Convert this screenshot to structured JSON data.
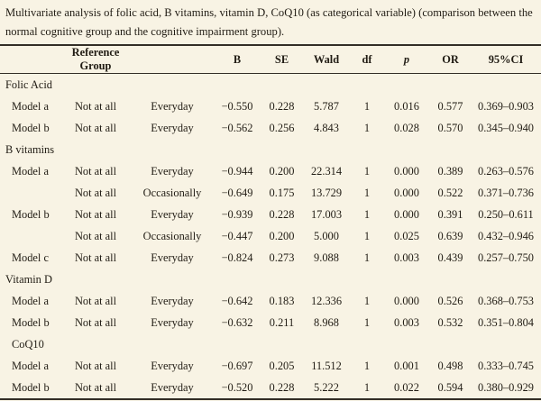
{
  "caption": "Multivariate analysis of folic acid, B vitamins, vitamin D, CoQ10 (as categorical variable) (comparison between the normal cognitive group and the cognitive impairment group).",
  "colors": {
    "background": "#f8f3e4",
    "text": "#211c14",
    "rule": "#332e26"
  },
  "table": {
    "header": {
      "reference_group": "Reference Group",
      "b": "B",
      "se": "SE",
      "wald": "Wald",
      "df": "df",
      "p": "p",
      "or": "OR",
      "ci": "95%CI"
    },
    "sections": [
      {
        "name": "Folic Acid",
        "indent": false,
        "rows": [
          {
            "model": "Model a",
            "ref": "Not at all",
            "group": "Everyday",
            "b": "−0.550",
            "se": "0.228",
            "wald": "5.787",
            "df": "1",
            "p": "0.016",
            "or": "0.577",
            "ci": "0.369–0.903"
          },
          {
            "model": "Model b",
            "ref": "Not at all",
            "group": "Everyday",
            "b": "−0.562",
            "se": "0.256",
            "wald": "4.843",
            "df": "1",
            "p": "0.028",
            "or": "0.570",
            "ci": "0.345–0.940"
          }
        ]
      },
      {
        "name": "B vitamins",
        "indent": false,
        "rows": [
          {
            "model": "Model a",
            "ref": "Not at all",
            "group": "Everyday",
            "b": "−0.944",
            "se": "0.200",
            "wald": "22.314",
            "df": "1",
            "p": "0.000",
            "or": "0.389",
            "ci": "0.263–0.576"
          },
          {
            "model": "",
            "ref": "Not at all",
            "group": "Occasionally",
            "b": "−0.649",
            "se": "0.175",
            "wald": "13.729",
            "df": "1",
            "p": "0.000",
            "or": "0.522",
            "ci": "0.371–0.736"
          },
          {
            "model": "Model b",
            "ref": "Not at all",
            "group": "Everyday",
            "b": "−0.939",
            "se": "0.228",
            "wald": "17.003",
            "df": "1",
            "p": "0.000",
            "or": "0.391",
            "ci": "0.250–0.611"
          },
          {
            "model": "",
            "ref": "Not at all",
            "group": "Occasionally",
            "b": "−0.447",
            "se": "0.200",
            "wald": "5.000",
            "df": "1",
            "p": "0.025",
            "or": "0.639",
            "ci": "0.432–0.946"
          },
          {
            "model": "Model c",
            "ref": "Not at all",
            "group": "Everyday",
            "b": "−0.824",
            "se": "0.273",
            "wald": "9.088",
            "df": "1",
            "p": "0.003",
            "or": "0.439",
            "ci": "0.257–0.750"
          }
        ]
      },
      {
        "name": "Vitamin D",
        "indent": false,
        "rows": [
          {
            "model": "Model a",
            "ref": "Not at all",
            "group": "Everyday",
            "b": "−0.642",
            "se": "0.183",
            "wald": "12.336",
            "df": "1",
            "p": "0.000",
            "or": "0.526",
            "ci": "0.368–0.753"
          },
          {
            "model": "Model b",
            "ref": "Not at all",
            "group": "Everyday",
            "b": "−0.632",
            "se": "0.211",
            "wald": "8.968",
            "df": "1",
            "p": "0.003",
            "or": "0.532",
            "ci": "0.351–0.804"
          }
        ]
      },
      {
        "name": "CoQ10",
        "indent": true,
        "rows": [
          {
            "model": "Model a",
            "ref": "Not at all",
            "group": "Everyday",
            "b": "−0.697",
            "se": "0.205",
            "wald": "11.512",
            "df": "1",
            "p": "0.001",
            "or": "0.498",
            "ci": "0.333–0.745"
          },
          {
            "model": "Model b",
            "ref": "Not at all",
            "group": "Everyday",
            "b": "−0.520",
            "se": "0.228",
            "wald": "5.222",
            "df": "1",
            "p": "0.022",
            "or": "0.594",
            "ci": "0.380–0.929"
          }
        ]
      }
    ]
  }
}
